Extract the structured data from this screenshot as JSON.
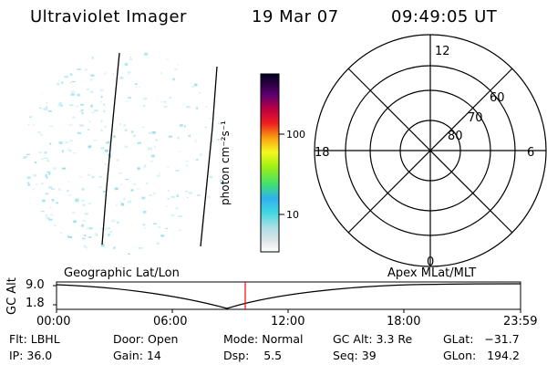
{
  "header": {
    "title": "Ultraviolet Imager",
    "date": "19 Mar 07",
    "time": "09:49:05 UT"
  },
  "colorbar": {
    "label": "photon cm⁻²s⁻¹",
    "ticks": [
      "100",
      "10"
    ]
  },
  "polar_plot": {
    "mlt_labels": {
      "top": "12",
      "left": "18",
      "right": "6",
      "bottom": "0"
    },
    "lat_labels": [
      "60",
      "70",
      "80"
    ]
  },
  "altitude_panel": {
    "left_title": "Geographic Lat/Lon",
    "right_title": "Apex MLat/MLT",
    "axis_label": "GC Alt",
    "y_ticks": [
      "9.0",
      "1.8"
    ],
    "x_ticks": [
      "00:00",
      "06:00",
      "12:00",
      "18:00",
      "23:59"
    ],
    "current_time_marker": "09:49"
  },
  "info": {
    "flt": {
      "label": "Flt:",
      "value": "LBHL"
    },
    "ip": {
      "label": "IP:",
      "value": "36.0"
    },
    "door": {
      "label": "Door:",
      "value": "Open"
    },
    "gain": {
      "label": "Gain:",
      "value": "14"
    },
    "mode": {
      "label": "Mode:",
      "value": "Normal"
    },
    "dsp": {
      "label": "Dsp:",
      "value": "5.5"
    },
    "gcalt": {
      "label": "GC Alt:",
      "value": "3.3 Re"
    },
    "seq": {
      "label": "Seq:",
      "value": "39"
    },
    "glat": {
      "label": "GLat:",
      "value": "−31.7"
    },
    "glon": {
      "label": "GLon:",
      "value": "194.2"
    }
  },
  "colors": {
    "speckle": "#aee8f0",
    "marker": "#ff0000",
    "ink": "#000000"
  }
}
